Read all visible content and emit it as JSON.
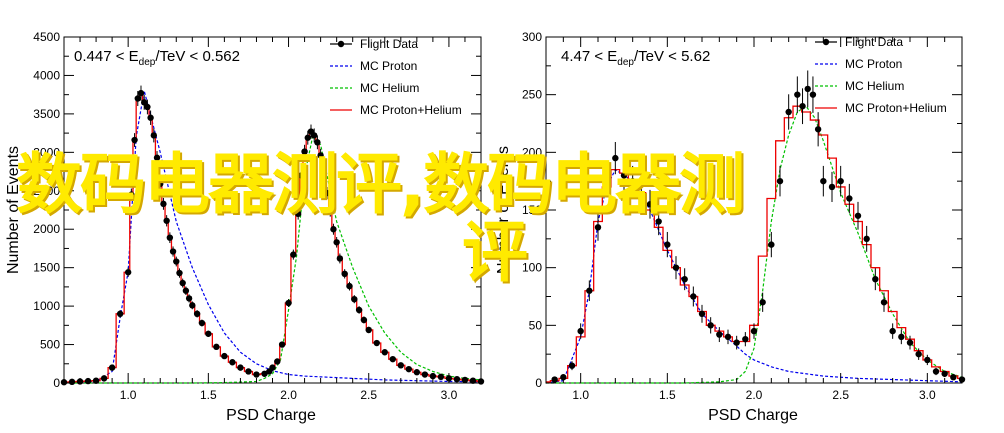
{
  "charts": [
    {
      "inset_prefix": "0.447 < E",
      "inset_sub": "dep",
      "inset_suffix": "/TeV < 0.562",
      "xlabel": "PSD Charge",
      "ylabel": "Number of Events",
      "xlim": [
        0.6,
        3.2
      ],
      "ylim": [
        0,
        4500
      ],
      "xticks": [
        1.0,
        1.5,
        2.0,
        2.5,
        3.0
      ],
      "xtick_labels": [
        "1.0",
        "1.5",
        "2.0",
        "2.5",
        "3.0"
      ],
      "yticks": [
        0,
        250,
        500,
        750,
        1000,
        1250,
        1500,
        1750,
        2000,
        2250,
        2500,
        2750,
        3000,
        3250,
        3500,
        3750,
        4000,
        4250,
        4500
      ],
      "ytick_labels": [
        "0",
        "",
        "500",
        "",
        "1000",
        "",
        "1500",
        "",
        "2000",
        "",
        "2500",
        "",
        "3000",
        "",
        "3500",
        "",
        "4000",
        "",
        "4500"
      ]
    },
    {
      "inset_prefix": "4.47 < E",
      "inset_sub": "dep",
      "inset_suffix": "/TeV < 5.62",
      "xlabel": "PSD Charge",
      "ylabel": "Number of Events",
      "xlim": [
        0.8,
        3.2
      ],
      "ylim": [
        0,
        300
      ],
      "xticks": [
        1.0,
        1.5,
        2.0,
        2.5,
        3.0
      ],
      "xtick_labels": [
        "1.0",
        "1.5",
        "2.0",
        "2.5",
        "3.0"
      ],
      "yticks": [
        0,
        25,
        50,
        75,
        100,
        125,
        150,
        175,
        200,
        225,
        250,
        275,
        300
      ],
      "ytick_labels": [
        "0",
        "",
        "50",
        "",
        "100",
        "",
        "150",
        "",
        "200",
        "",
        "250",
        "",
        "300"
      ]
    }
  ],
  "legend": {
    "items": [
      "Flight Data",
      "MC Proton",
      "MC Helium",
      "MC Proton+Helium"
    ]
  },
  "colors": {
    "flight": "#000000",
    "proton": "#0000ee",
    "helium": "#00c000",
    "sum": "#ee0000",
    "watermark": "#ffea00"
  },
  "watermark": {
    "line1": "数码电器测评,数码电器测",
    "line2": "评"
  },
  "chart_data": [
    {
      "type": "line",
      "title": "",
      "xlabel": "PSD Charge",
      "ylabel": "Number of Events",
      "xlim": [
        0.6,
        3.2
      ],
      "ylim": [
        0,
        4500
      ],
      "series": [
        {
          "name": "Flight Data",
          "style": "points-with-errors",
          "x": [
            0.6,
            0.65,
            0.7,
            0.75,
            0.8,
            0.85,
            0.9,
            0.95,
            1.0,
            1.02,
            1.04,
            1.06,
            1.08,
            1.1,
            1.12,
            1.14,
            1.16,
            1.18,
            1.2,
            1.22,
            1.24,
            1.26,
            1.28,
            1.3,
            1.32,
            1.34,
            1.36,
            1.38,
            1.4,
            1.43,
            1.46,
            1.5,
            1.55,
            1.6,
            1.65,
            1.7,
            1.75,
            1.8,
            1.85,
            1.88,
            1.9,
            1.93,
            1.96,
            2.0,
            2.03,
            2.06,
            2.08,
            2.1,
            2.12,
            2.14,
            2.16,
            2.18,
            2.2,
            2.22,
            2.24,
            2.26,
            2.28,
            2.3,
            2.32,
            2.35,
            2.38,
            2.41,
            2.44,
            2.47,
            2.5,
            2.55,
            2.6,
            2.65,
            2.7,
            2.75,
            2.8,
            2.85,
            2.9,
            2.95,
            3.0,
            3.05,
            3.1,
            3.15,
            3.2
          ],
          "y": [
            10,
            15,
            20,
            25,
            30,
            60,
            200,
            900,
            1440,
            2450,
            3160,
            3700,
            3770,
            3650,
            3590,
            3450,
            3220,
            2930,
            2590,
            2330,
            2110,
            1890,
            1710,
            1580,
            1430,
            1300,
            1200,
            1100,
            1010,
            900,
            780,
            640,
            470,
            350,
            270,
            200,
            150,
            110,
            120,
            150,
            200,
            280,
            500,
            1040,
            1670,
            2200,
            2700,
            3010,
            3190,
            3270,
            3220,
            3130,
            2960,
            2720,
            2470,
            2240,
            2000,
            1830,
            1620,
            1420,
            1260,
            1090,
            950,
            820,
            690,
            520,
            400,
            310,
            230,
            180,
            140,
            110,
            90,
            80,
            60,
            50,
            40,
            30,
            20
          ]
        },
        {
          "name": "MC Proton",
          "style": "dashed",
          "x": [
            0.6,
            0.8,
            0.9,
            0.95,
            1.0,
            1.05,
            1.1,
            1.2,
            1.3,
            1.4,
            1.5,
            1.6,
            1.7,
            1.8,
            1.9,
            2.0,
            2.1,
            2.2,
            2.3,
            2.4,
            2.5,
            2.6,
            2.7,
            2.8,
            2.9,
            3.0,
            3.1,
            3.2
          ],
          "y": [
            10,
            20,
            150,
            850,
            1450,
            3200,
            3800,
            3000,
            2100,
            1500,
            1020,
            650,
            400,
            250,
            160,
            110,
            90,
            80,
            70,
            60,
            50,
            40,
            35,
            30,
            25,
            20,
            18,
            15
          ]
        },
        {
          "name": "MC Helium",
          "style": "dashed",
          "x": [
            0.6,
            1.0,
            1.4,
            1.6,
            1.8,
            1.85,
            1.9,
            1.95,
            2.0,
            2.05,
            2.1,
            2.15,
            2.2,
            2.25,
            2.3,
            2.4,
            2.5,
            2.6,
            2.7,
            2.8,
            2.9,
            3.0,
            3.1,
            3.2
          ],
          "y": [
            0,
            0,
            0,
            5,
            20,
            60,
            120,
            300,
            950,
            1650,
            2700,
            3200,
            3100,
            2600,
            2100,
            1500,
            1000,
            650,
            400,
            240,
            150,
            90,
            60,
            40
          ]
        },
        {
          "name": "MC Proton+Helium",
          "style": "step",
          "x": [
            0.6,
            0.65,
            0.7,
            0.75,
            0.8,
            0.85,
            0.9,
            0.95,
            1.0,
            1.02,
            1.04,
            1.06,
            1.08,
            1.1,
            1.12,
            1.14,
            1.16,
            1.18,
            1.2,
            1.22,
            1.24,
            1.26,
            1.28,
            1.3,
            1.32,
            1.34,
            1.36,
            1.38,
            1.4,
            1.43,
            1.46,
            1.5,
            1.55,
            1.6,
            1.65,
            1.7,
            1.75,
            1.8,
            1.85,
            1.88,
            1.9,
            1.93,
            1.96,
            2.0,
            2.03,
            2.06,
            2.08,
            2.1,
            2.12,
            2.14,
            2.16,
            2.18,
            2.2,
            2.22,
            2.24,
            2.26,
            2.28,
            2.3,
            2.32,
            2.35,
            2.38,
            2.41,
            2.44,
            2.47,
            2.5,
            2.55,
            2.6,
            2.65,
            2.7,
            2.75,
            2.8,
            2.85,
            2.9,
            2.95,
            3.0,
            3.05,
            3.1,
            3.15,
            3.2
          ],
          "y": [
            10,
            15,
            20,
            25,
            30,
            60,
            200,
            900,
            1440,
            2450,
            3160,
            3700,
            3770,
            3650,
            3590,
            3450,
            3220,
            2930,
            2590,
            2330,
            2110,
            1890,
            1710,
            1580,
            1430,
            1300,
            1200,
            1100,
            1010,
            900,
            780,
            640,
            470,
            350,
            270,
            200,
            150,
            110,
            120,
            150,
            200,
            280,
            500,
            1040,
            1670,
            2200,
            2700,
            3010,
            3190,
            3270,
            3220,
            3130,
            2960,
            2720,
            2470,
            2240,
            2000,
            1830,
            1620,
            1420,
            1260,
            1090,
            950,
            820,
            690,
            520,
            400,
            310,
            230,
            180,
            140,
            110,
            90,
            80,
            60,
            50,
            40,
            30,
            20
          ]
        }
      ]
    },
    {
      "type": "line",
      "title": "",
      "xlabel": "PSD Charge",
      "ylabel": "Number of Events",
      "xlim": [
        0.8,
        3.2
      ],
      "ylim": [
        0,
        300
      ],
      "series": [
        {
          "name": "Flight Data",
          "style": "points-with-errors",
          "x": [
            0.85,
            0.9,
            0.95,
            1.0,
            1.05,
            1.1,
            1.15,
            1.2,
            1.25,
            1.3,
            1.35,
            1.4,
            1.45,
            1.5,
            1.55,
            1.6,
            1.65,
            1.7,
            1.75,
            1.8,
            1.85,
            1.9,
            1.95,
            2.0,
            2.05,
            2.1,
            2.15,
            2.2,
            2.25,
            2.28,
            2.31,
            2.34,
            2.37,
            2.4,
            2.45,
            2.5,
            2.55,
            2.6,
            2.65,
            2.7,
            2.75,
            2.8,
            2.85,
            2.9,
            2.95,
            3.0,
            3.05,
            3.1,
            3.15,
            3.2
          ],
          "y": [
            3,
            5,
            15,
            45,
            80,
            135,
            175,
            195,
            180,
            175,
            160,
            155,
            140,
            120,
            100,
            90,
            75,
            60,
            50,
            42,
            40,
            35,
            38,
            45,
            70,
            120,
            175,
            235,
            250,
            240,
            255,
            250,
            220,
            175,
            170,
            175,
            160,
            145,
            125,
            90,
            70,
            45,
            40,
            35,
            25,
            20,
            10,
            8,
            5,
            3
          ]
        },
        {
          "name": "MC Proton",
          "style": "dashed",
          "x": [
            0.8,
            0.9,
            1.0,
            1.05,
            1.1,
            1.15,
            1.2,
            1.3,
            1.4,
            1.5,
            1.6,
            1.7,
            1.8,
            1.9,
            1.95,
            2.0,
            2.1,
            2.2,
            2.3,
            2.4,
            2.5,
            2.6,
            2.8,
            3.0,
            3.2
          ],
          "y": [
            0,
            2,
            40,
            80,
            140,
            170,
            185,
            175,
            150,
            115,
            85,
            60,
            45,
            32,
            25,
            20,
            14,
            10,
            8,
            6,
            5,
            4,
            3,
            2,
            1
          ]
        },
        {
          "name": "MC Helium",
          "style": "dashed",
          "x": [
            0.8,
            1.6,
            1.8,
            1.9,
            1.95,
            2.0,
            2.05,
            2.1,
            2.15,
            2.2,
            2.25,
            2.3,
            2.35,
            2.4,
            2.5,
            2.6,
            2.7,
            2.8,
            2.9,
            3.0,
            3.1,
            3.2
          ],
          "y": [
            0,
            0,
            1,
            3,
            10,
            30,
            80,
            140,
            185,
            215,
            235,
            240,
            230,
            210,
            165,
            130,
            90,
            60,
            35,
            20,
            10,
            5
          ]
        },
        {
          "name": "MC Proton+Helium",
          "style": "step",
          "x": [
            0.8,
            0.85,
            0.9,
            0.95,
            1.0,
            1.05,
            1.1,
            1.15,
            1.2,
            1.25,
            1.3,
            1.35,
            1.4,
            1.45,
            1.5,
            1.55,
            1.6,
            1.65,
            1.7,
            1.75,
            1.8,
            1.85,
            1.9,
            1.95,
            2.0,
            2.05,
            2.1,
            2.15,
            2.2,
            2.25,
            2.3,
            2.35,
            2.4,
            2.45,
            2.5,
            2.55,
            2.6,
            2.65,
            2.7,
            2.75,
            2.8,
            2.85,
            2.9,
            2.95,
            3.0,
            3.05,
            3.1,
            3.15,
            3.2
          ],
          "y": [
            1,
            2,
            4,
            15,
            40,
            80,
            140,
            170,
            185,
            182,
            175,
            165,
            150,
            135,
            115,
            100,
            85,
            75,
            62,
            50,
            45,
            40,
            36,
            36,
            50,
            110,
            160,
            210,
            230,
            240,
            235,
            228,
            215,
            195,
            170,
            155,
            140,
            120,
            100,
            80,
            62,
            48,
            38,
            28,
            20,
            14,
            10,
            6,
            4
          ]
        }
      ]
    }
  ]
}
